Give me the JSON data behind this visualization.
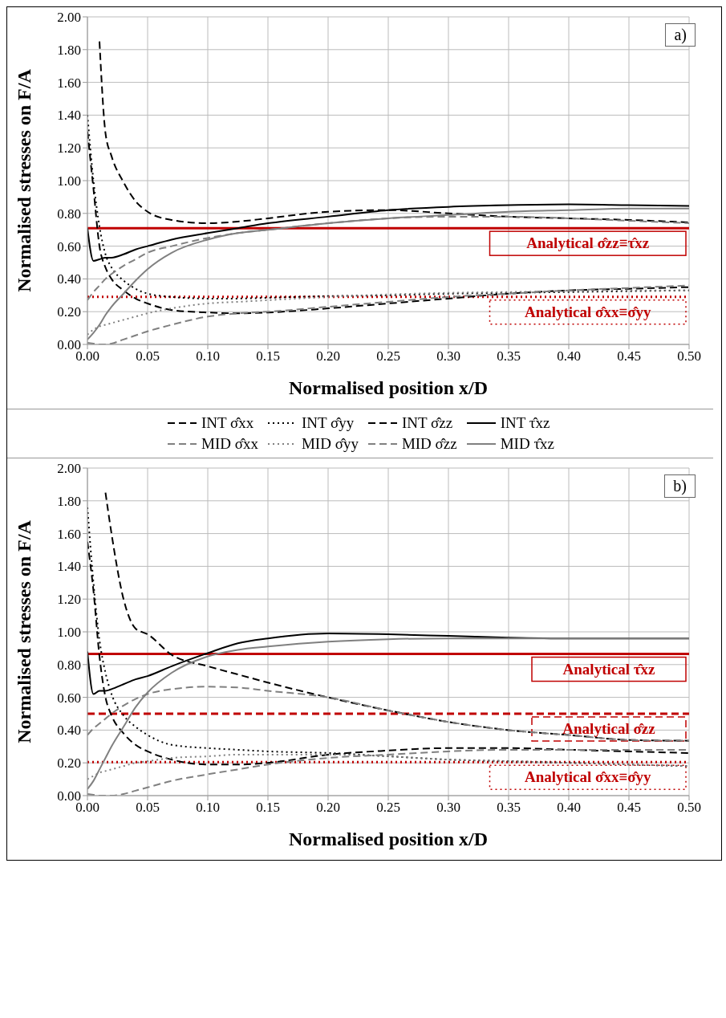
{
  "chart_data": [
    {
      "type": "line",
      "xlabel": "Normalised position x/D",
      "ylabel": "Normalised stresses on F/A",
      "annotations": [
        "a)"
      ],
      "x": [
        0,
        0.005,
        0.01,
        0.015,
        0.02,
        0.03,
        0.04,
        0.05,
        0.07,
        0.1,
        0.125,
        0.15,
        0.2,
        0.25,
        0.3,
        0.35,
        0.4,
        0.45,
        0.5
      ],
      "xlim": [
        0,
        0.5
      ],
      "ylim": [
        0,
        2
      ],
      "xticks": [
        {
          "value": 0,
          "label": "0.00"
        },
        {
          "value": 0.05,
          "label": "0.05"
        },
        {
          "value": 0.1,
          "label": "0.10"
        },
        {
          "value": 0.15,
          "label": "0.15"
        },
        {
          "value": 0.2,
          "label": "0.20"
        },
        {
          "value": 0.25,
          "label": "0.25"
        },
        {
          "value": 0.3,
          "label": "0.30"
        },
        {
          "value": 0.35,
          "label": "0.35"
        },
        {
          "value": 0.4,
          "label": "0.40"
        },
        {
          "value": 0.45,
          "label": "0.45"
        },
        {
          "value": 0.5,
          "label": "0.50"
        }
      ],
      "yticks": [
        {
          "value": 0,
          "label": "0.00"
        },
        {
          "value": 0.2,
          "label": "0.20"
        },
        {
          "value": 0.4,
          "label": "0.40"
        },
        {
          "value": 0.6,
          "label": "0.60"
        },
        {
          "value": 0.8,
          "label": "0.80"
        },
        {
          "value": 1,
          "label": "1.00"
        },
        {
          "value": 1.2,
          "label": "1.20"
        },
        {
          "value": 1.4,
          "label": "1.40"
        },
        {
          "value": 1.6,
          "label": "1.60"
        },
        {
          "value": 1.8,
          "label": "1.80"
        },
        {
          "value": 2,
          "label": "2.00"
        }
      ],
      "grid": true,
      "legend": "bottom",
      "series": [
        {
          "name": "INT σ̂xx",
          "color": "#000000",
          "line_style": "dashed",
          "values": [
            1.3,
            0.95,
            0.6,
            0.47,
            0.4,
            0.33,
            0.28,
            0.25,
            0.21,
            0.195,
            0.19,
            0.195,
            0.22,
            0.25,
            0.28,
            0.31,
            0.33,
            0.34,
            0.35
          ]
        },
        {
          "name": "INT σ̂yy",
          "color": "#000000",
          "line_style": "dotted",
          "values": [
            1.4,
            1.0,
            0.72,
            0.55,
            0.47,
            0.39,
            0.34,
            0.31,
            0.29,
            0.28,
            0.28,
            0.285,
            0.295,
            0.3,
            0.31,
            0.315,
            0.32,
            0.325,
            0.33
          ]
        },
        {
          "name": "INT σ̂zz",
          "color": "#000000",
          "line_style": "dashed",
          "values": [
            null,
            null,
            1.85,
            1.29,
            1.15,
            0.99,
            0.875,
            0.81,
            0.76,
            0.74,
            0.75,
            0.77,
            0.81,
            0.82,
            0.8,
            0.78,
            0.77,
            0.76,
            0.745
          ]
        },
        {
          "name": "INT τ̂xz",
          "color": "#000000",
          "line_style": "solid",
          "values": [
            0.71,
            0.51,
            0.52,
            0.53,
            0.53,
            0.55,
            0.58,
            0.6,
            0.64,
            0.68,
            0.71,
            0.74,
            0.78,
            0.82,
            0.84,
            0.85,
            0.855,
            0.85,
            0.845
          ]
        },
        {
          "name": "MID σ̂xx",
          "color": "#808080",
          "line_style": "dashed",
          "values": [
            0.01,
            0.005,
            0.0,
            0.0,
            0.005,
            0.03,
            0.055,
            0.08,
            0.12,
            0.17,
            0.19,
            0.2,
            0.23,
            0.26,
            0.29,
            0.31,
            0.33,
            0.345,
            0.36
          ]
        },
        {
          "name": "MID σ̂yy",
          "color": "#808080",
          "line_style": "dotted",
          "values": [
            0.06,
            0.09,
            0.11,
            0.12,
            0.13,
            0.15,
            0.17,
            0.19,
            0.22,
            0.25,
            0.26,
            0.27,
            0.29,
            0.305,
            0.315,
            0.32,
            0.325,
            0.33,
            0.33
          ]
        },
        {
          "name": "MID σ̂zz",
          "color": "#808080",
          "line_style": "dashed",
          "values": [
            0.27,
            0.32,
            0.36,
            0.4,
            0.43,
            0.48,
            0.52,
            0.56,
            0.6,
            0.65,
            0.68,
            0.7,
            0.74,
            0.77,
            0.78,
            0.78,
            0.77,
            0.755,
            0.74
          ]
        },
        {
          "name": "MID τ̂xz",
          "color": "#808080",
          "line_style": "solid",
          "values": [
            0.03,
            0.07,
            0.12,
            0.18,
            0.23,
            0.31,
            0.39,
            0.46,
            0.56,
            0.64,
            0.68,
            0.7,
            0.74,
            0.77,
            0.79,
            0.81,
            0.82,
            0.83,
            0.83
          ]
        }
      ],
      "ref_lines": [
        {
          "axis": "y",
          "value": 0.71,
          "label": "Analytical  σ̂zz≡τ̂xz",
          "color": "#c00000",
          "line_style": "solid"
        },
        {
          "axis": "y",
          "value": 0.29,
          "label": "Analytical  σ̂xx≡σ̂yy",
          "color": "#c00000",
          "line_style": "dotted"
        }
      ]
    },
    {
      "type": "line",
      "xlabel": "Normalised position x/D",
      "ylabel": "Normalised stresses on F/A",
      "annotations": [
        "b)"
      ],
      "x": [
        0,
        0.005,
        0.01,
        0.015,
        0.02,
        0.03,
        0.04,
        0.05,
        0.07,
        0.1,
        0.125,
        0.15,
        0.2,
        0.25,
        0.3,
        0.35,
        0.4,
        0.45,
        0.5
      ],
      "xlim": [
        0,
        0.5
      ],
      "ylim": [
        0,
        2
      ],
      "xticks": [
        {
          "value": 0,
          "label": "0.00"
        },
        {
          "value": 0.05,
          "label": "0.05"
        },
        {
          "value": 0.1,
          "label": "0.10"
        },
        {
          "value": 0.15,
          "label": "0.15"
        },
        {
          "value": 0.2,
          "label": "0.20"
        },
        {
          "value": 0.25,
          "label": "0.25"
        },
        {
          "value": 0.3,
          "label": "0.30"
        },
        {
          "value": 0.35,
          "label": "0.35"
        },
        {
          "value": 0.4,
          "label": "0.40"
        },
        {
          "value": 0.45,
          "label": "0.45"
        },
        {
          "value": 0.5,
          "label": "0.50"
        }
      ],
      "yticks": [
        {
          "value": 0,
          "label": "0.00"
        },
        {
          "value": 0.2,
          "label": "0.20"
        },
        {
          "value": 0.4,
          "label": "0.40"
        },
        {
          "value": 0.6,
          "label": "0.60"
        },
        {
          "value": 0.8,
          "label": "0.80"
        },
        {
          "value": 1,
          "label": "1.00"
        },
        {
          "value": 1.2,
          "label": "1.20"
        },
        {
          "value": 1.4,
          "label": "1.40"
        },
        {
          "value": 1.6,
          "label": "1.60"
        },
        {
          "value": 1.8,
          "label": "1.80"
        },
        {
          "value": 2,
          "label": "2.00"
        }
      ],
      "grid": true,
      "series": [
        {
          "color": "#000000",
          "line_style": "dashed",
          "values": [
            1.55,
            1.25,
            0.85,
            0.6,
            0.49,
            0.38,
            0.31,
            0.27,
            0.22,
            0.19,
            0.19,
            0.2,
            0.25,
            0.275,
            0.29,
            0.29,
            0.28,
            0.27,
            0.26
          ]
        },
        {
          "color": "#000000",
          "line_style": "dotted",
          "values": [
            1.76,
            1.3,
            0.95,
            0.75,
            0.62,
            0.49,
            0.42,
            0.37,
            0.31,
            0.29,
            0.28,
            0.27,
            0.26,
            0.24,
            0.22,
            0.21,
            0.2,
            0.19,
            0.18
          ]
        },
        {
          "color": "#000000",
          "line_style": "dashed",
          "values": [
            null,
            null,
            null,
            1.85,
            1.6,
            1.2,
            1.02,
            0.985,
            0.86,
            0.79,
            0.74,
            0.69,
            0.6,
            0.52,
            0.45,
            0.4,
            0.37,
            0.34,
            0.335
          ]
        },
        {
          "color": "#000000",
          "line_style": "solid",
          "values": [
            0.88,
            0.62,
            0.64,
            0.64,
            0.65,
            0.68,
            0.71,
            0.73,
            0.79,
            0.87,
            0.93,
            0.96,
            0.99,
            0.985,
            0.975,
            0.965,
            0.96,
            0.96,
            0.96
          ]
        },
        {
          "color": "#808080",
          "line_style": "dashed",
          "values": [
            0.01,
            0.005,
            0.0,
            0.0,
            0.0,
            0.01,
            0.03,
            0.05,
            0.09,
            0.13,
            0.16,
            0.19,
            0.23,
            0.25,
            0.27,
            0.28,
            0.28,
            0.28,
            0.28
          ]
        },
        {
          "color": "#808080",
          "line_style": "dotted",
          "values": [
            0.1,
            0.12,
            0.14,
            0.15,
            0.16,
            0.18,
            0.2,
            0.21,
            0.23,
            0.24,
            0.25,
            0.25,
            0.25,
            0.24,
            0.22,
            0.21,
            0.2,
            0.19,
            0.18
          ]
        },
        {
          "color": "#808080",
          "line_style": "dashed",
          "values": [
            0.37,
            0.41,
            0.44,
            0.47,
            0.5,
            0.55,
            0.59,
            0.62,
            0.65,
            0.665,
            0.66,
            0.64,
            0.6,
            0.52,
            0.45,
            0.4,
            0.37,
            0.34,
            0.335
          ]
        },
        {
          "color": "#808080",
          "line_style": "solid",
          "values": [
            0.04,
            0.09,
            0.16,
            0.23,
            0.3,
            0.42,
            0.54,
            0.63,
            0.75,
            0.85,
            0.89,
            0.91,
            0.94,
            0.955,
            0.96,
            0.96,
            0.96,
            0.96,
            0.96
          ]
        }
      ],
      "ref_lines": [
        {
          "axis": "y",
          "value": 0.865,
          "label": "Analytical  τ̂xz",
          "color": "#c00000",
          "line_style": "solid"
        },
        {
          "axis": "y",
          "value": 0.5,
          "label": "Analytical  σ̂zz",
          "color": "#c00000",
          "line_style": "dashed"
        },
        {
          "axis": "y",
          "value": 0.205,
          "label": "Analytical  σ̂xx≡σ̂yy",
          "color": "#c00000",
          "line_style": "dotted"
        }
      ]
    }
  ]
}
